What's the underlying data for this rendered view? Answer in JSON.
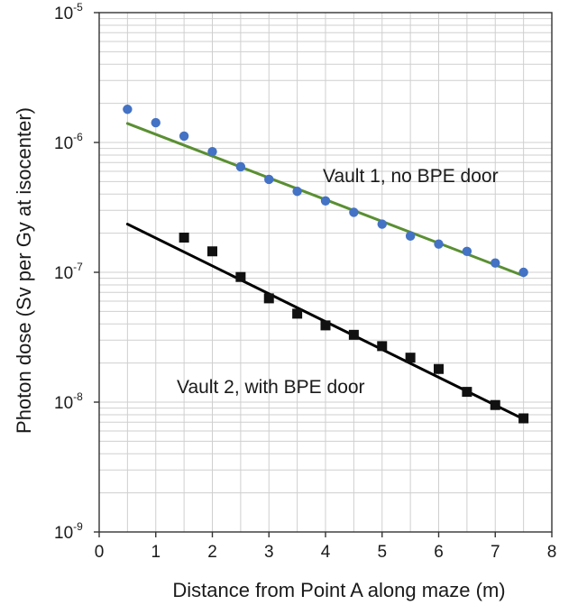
{
  "chart_data": {
    "type": "scatter",
    "xlabel": "Distance from Point A along maze (m)",
    "ylabel": "Photon dose (Sv per Gy at isocenter)",
    "xlim": [
      0,
      8
    ],
    "ylim": [
      1e-09,
      1e-05
    ],
    "yscale": "log",
    "grid": true,
    "x_ticks": [
      "0",
      "1",
      "2",
      "3",
      "4",
      "5",
      "6",
      "7",
      "8"
    ],
    "y_ticks": [
      {
        "base": "10",
        "exp": "-9",
        "value": 1e-09
      },
      {
        "base": "10",
        "exp": "-8",
        "value": 1e-08
      },
      {
        "base": "10",
        "exp": "-7",
        "value": 1e-07
      },
      {
        "base": "10",
        "exp": "-6",
        "value": 1e-06
      },
      {
        "base": "10",
        "exp": "-5",
        "value": 1e-05
      }
    ],
    "series": [
      {
        "marker": "circle",
        "marker_color": "#4472c4",
        "fit_color": "#5a8f32",
        "x": [
          0.5,
          1.0,
          1.5,
          2.0,
          2.5,
          3.0,
          3.5,
          4.0,
          4.5,
          5.0,
          5.5,
          6.0,
          6.5,
          7.0,
          7.5
        ],
        "y": [
          1.8e-06,
          1.42e-06,
          1.12e-06,
          8.5e-07,
          6.5e-07,
          5.2e-07,
          4.2e-07,
          3.55e-07,
          2.9e-07,
          2.35e-07,
          1.9e-07,
          1.65e-07,
          1.45e-07,
          1.18e-07,
          1e-07
        ],
        "fit": {
          "x": [
            0.5,
            7.5
          ],
          "y": [
            1.4e-06,
            9.4e-08
          ]
        }
      },
      {
        "marker": "square",
        "marker_color": "#111111",
        "fit_color": "#000000",
        "x": [
          1.5,
          2.0,
          2.5,
          3.0,
          3.5,
          4.0,
          4.5,
          5.0,
          5.5,
          6.0,
          6.5,
          7.0,
          7.5
        ],
        "y": [
          1.85e-07,
          1.45e-07,
          9.2e-08,
          6.3e-08,
          4.8e-08,
          3.9e-08,
          3.3e-08,
          2.7e-08,
          2.2e-08,
          1.8e-08,
          1.2e-08,
          9.5e-09,
          7.5e-09
        ],
        "fit": {
          "x": [
            0.5,
            7.5
          ],
          "y": [
            2.35e-07,
            7.4e-09
          ]
        }
      }
    ],
    "annotations": [
      {
        "text": "Vault 1, no BPE door"
      },
      {
        "text": "Vault 2, with BPE door"
      }
    ]
  }
}
